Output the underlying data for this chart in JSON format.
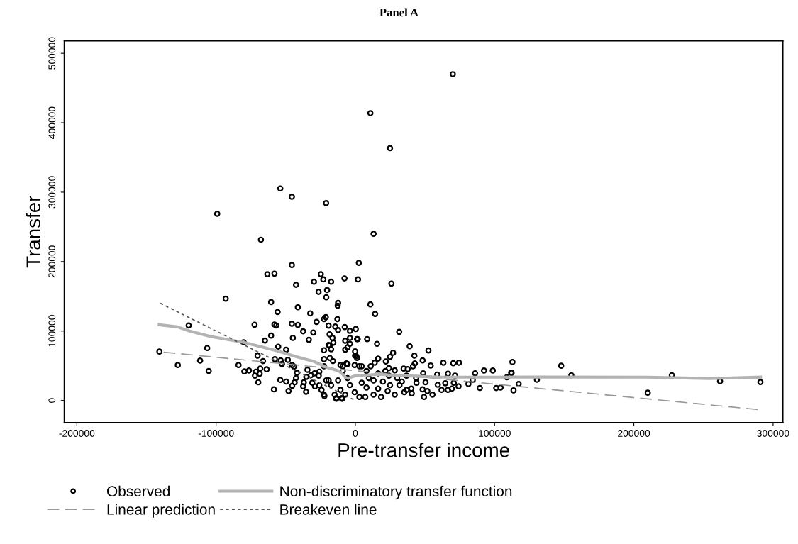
{
  "chart_data": {
    "type": "scatter",
    "title": "Panel A",
    "xlabel": "Pre-transfer income",
    "ylabel": "Transfer",
    "xlim": [
      -209000,
      307000
    ],
    "ylim": [
      -32000,
      518000
    ],
    "xticks": [
      -200000,
      -100000,
      0,
      100000,
      200000,
      300000
    ],
    "yticks": [
      0,
      100000,
      200000,
      300000,
      400000,
      500000
    ],
    "grid": false,
    "legend": "bottom",
    "series": [
      {
        "name": "Observed",
        "marker": "circle",
        "color": "#000000",
        "x": [
          10800,
          24900,
          -53900,
          -45600,
          -21000,
          -99200,
          -67800,
          13100,
          70000,
          -45600,
          -63200,
          -58100,
          -24800,
          -7800,
          2500,
          1900,
          -29700,
          -23000,
          -17400,
          -42600,
          -26400,
          -20300,
          -20900,
          -93100,
          -60500,
          -12400,
          -12700,
          -41300,
          -55800,
          -32400,
          -21200,
          -22500,
          -12900,
          -27800,
          -119700,
          -72400,
          -58100,
          -56800,
          -45600,
          -41300,
          -19200,
          -14400,
          -12400,
          -7600,
          -3900,
          300,
          -37500,
          -30200,
          -44900,
          -33400,
          -60500,
          -64900,
          -18500,
          -16400,
          -15800,
          -18500,
          -3900,
          1200,
          -7300,
          -3900,
          -5600,
          -7300,
          -17400,
          -22500,
          -106400,
          -55400,
          -49700,
          -200,
          -200,
          -80200,
          -140700,
          -111500,
          -127500,
          -105300,
          -83900,
          -70200,
          -66300,
          -63700,
          -68300,
          -71400,
          -68700,
          -72100,
          -76400,
          -79700,
          -69700,
          -58500,
          -57800,
          -53600,
          -52700,
          -48500,
          -45400,
          -44100,
          -41900,
          -42600,
          -43600,
          -45400,
          -48000,
          -53900,
          -49700,
          -37500,
          -35400,
          -37000,
          -34400,
          -31900,
          -29300,
          -25900,
          -35200,
          -29000,
          -31000,
          -26300,
          -22500,
          -18300,
          -16100,
          -22500,
          -22500,
          -13700,
          -9800,
          -19200,
          -10700,
          -6500,
          25900,
          10800,
          14200,
          31500,
          1700,
          8500,
          15600,
          39000,
          52500,
          42400,
          48300,
          54100,
          63200,
          70300,
          74400,
          27100,
          24900,
          21900,
          16400,
          13900,
          42700,
          41400,
          34700,
          37600,
          28300,
          24100,
          11000,
          4600,
          48700,
          58800,
          66500,
          71600,
          86000,
          92400,
          98700,
          112200,
          112800,
          108800,
          117300,
          113600,
          89400,
          101200,
          104300,
          84300,
          81200,
          74100,
          69300,
          66500,
          61900,
          59200,
          55400,
          49300,
          51700,
          48300,
          64600,
          70700,
          50400,
          43900,
          40200,
          40500,
          35100,
          31700,
          28300,
          18500,
          7100,
          -13700,
          -9500,
          -22200,
          -19200,
          700,
          1200,
          -9000,
          -500,
          2900,
          8000,
          16400,
          21500,
          24100,
          13100,
          4600,
          -3900,
          -10700,
          -500,
          8000,
          16400,
          24900,
          33400,
          36800,
          30000,
          19800,
          9700,
          -5600,
          -12400,
          -17400,
          -20900,
          -25900,
          -24300,
          -14900,
          -7300,
          2900,
          13100,
          23200,
          36800,
          43600,
          -9000,
          -5600,
          147800,
          155100,
          111900,
          130400,
          210000,
          227300,
          261900,
          290900
        ],
        "values": [
          413800,
          363400,
          305300,
          293400,
          284300,
          269000,
          231500,
          240000,
          470000,
          195100,
          181900,
          182600,
          181900,
          175800,
          198200,
          174400,
          171000,
          174400,
          171000,
          166600,
          156400,
          159100,
          148600,
          146600,
          141800,
          140400,
          136400,
          134300,
          127500,
          125500,
          120000,
          117300,
          117300,
          113200,
          108100,
          109100,
          109400,
          108100,
          110500,
          108800,
          107800,
          106400,
          101300,
          105800,
          100300,
          103000,
          99700,
          97900,
          90100,
          87400,
          93500,
          86400,
          95200,
          90100,
          83300,
          79300,
          90100,
          88400,
          86000,
          81600,
          76500,
          73100,
          73700,
          72400,
          75500,
          77500,
          73100,
          70700,
          64600,
          83900,
          70400,
          57400,
          51000,
          42500,
          51000,
          64600,
          56800,
          44900,
          45900,
          41500,
          38500,
          35700,
          43100,
          41800,
          26200,
          16000,
          59500,
          57800,
          52700,
          58400,
          51000,
          48700,
          39800,
          32300,
          26200,
          21100,
          13600,
          29600,
          27200,
          20400,
          12600,
          26200,
          44200,
          36400,
          39100,
          41500,
          34000,
          20400,
          25500,
          35700,
          59500,
          61200,
          56800,
          49300,
          8500,
          3400,
          3400,
          28900,
          51000,
          53300,
          168300,
          138400,
          124700,
          98900,
          88400,
          88400,
          81600,
          78200,
          72100,
          64600,
          57800,
          50300,
          54400,
          53700,
          54400,
          68700,
          62900,
          56100,
          60200,
          54400,
          53300,
          49300,
          45900,
          45200,
          43500,
          46600,
          49300,
          49300,
          39100,
          37400,
          38500,
          35700,
          39100,
          43100,
          43100,
          39800,
          55400,
          33400,
          23800,
          14600,
          18000,
          18000,
          18700,
          29600,
          23800,
          20400,
          17000,
          15300,
          15300,
          22700,
          8500,
          5100,
          13600,
          16000,
          24800,
          25500,
          26200,
          25500,
          17000,
          10200,
          11900,
          22100,
          8500,
          5100,
          5100,
          2400,
          2400,
          6400,
          79900,
          63600,
          61200,
          42500,
          51000,
          49300,
          42500,
          39100,
          42500,
          35700,
          28900,
          25500,
          22100,
          15300,
          11900,
          18700,
          17000,
          22100,
          27200,
          35700,
          32300,
          27200,
          32300,
          32300,
          28900,
          22100,
          28900,
          22100,
          15300,
          8500,
          8500,
          5100,
          8500,
          13600,
          15300,
          32300,
          49300,
          52700,
          50000,
          36400,
          40100,
          29900,
          11200,
          36400,
          27800,
          26500
        ]
      },
      {
        "name": "Linear prediction",
        "type": "line",
        "line_style": "dashed",
        "color": "#999999",
        "x": [
          289000,
          -140000
        ],
        "values": [
          -13000,
          70000
        ]
      },
      {
        "name": "Non-discriminatory transfer function",
        "type": "line",
        "line_style": "solid",
        "color": "#b3b3b3",
        "x": [
          -140900,
          -127700,
          -119000,
          -103700,
          -80000,
          -56000,
          -42700,
          -29500,
          -20900,
          -12200,
          -10700,
          -8100,
          -6600,
          -5000,
          0,
          16300,
          33600,
          59000,
          101000,
          126600,
          209500,
          253800,
          291000
        ],
        "values": [
          109000,
          106000,
          100000,
          92000,
          83600,
          71400,
          63200,
          56000,
          48000,
          42800,
          40800,
          35700,
          32600,
          32000,
          35700,
          37700,
          35700,
          33700,
          33600,
          33700,
          33600,
          31600,
          33600
        ]
      },
      {
        "name": "Breakeven line",
        "type": "line",
        "line_style": "dotted",
        "color": "#555555",
        "x": [
          -140000,
          0
        ],
        "values": [
          140000,
          0
        ]
      }
    ]
  }
}
